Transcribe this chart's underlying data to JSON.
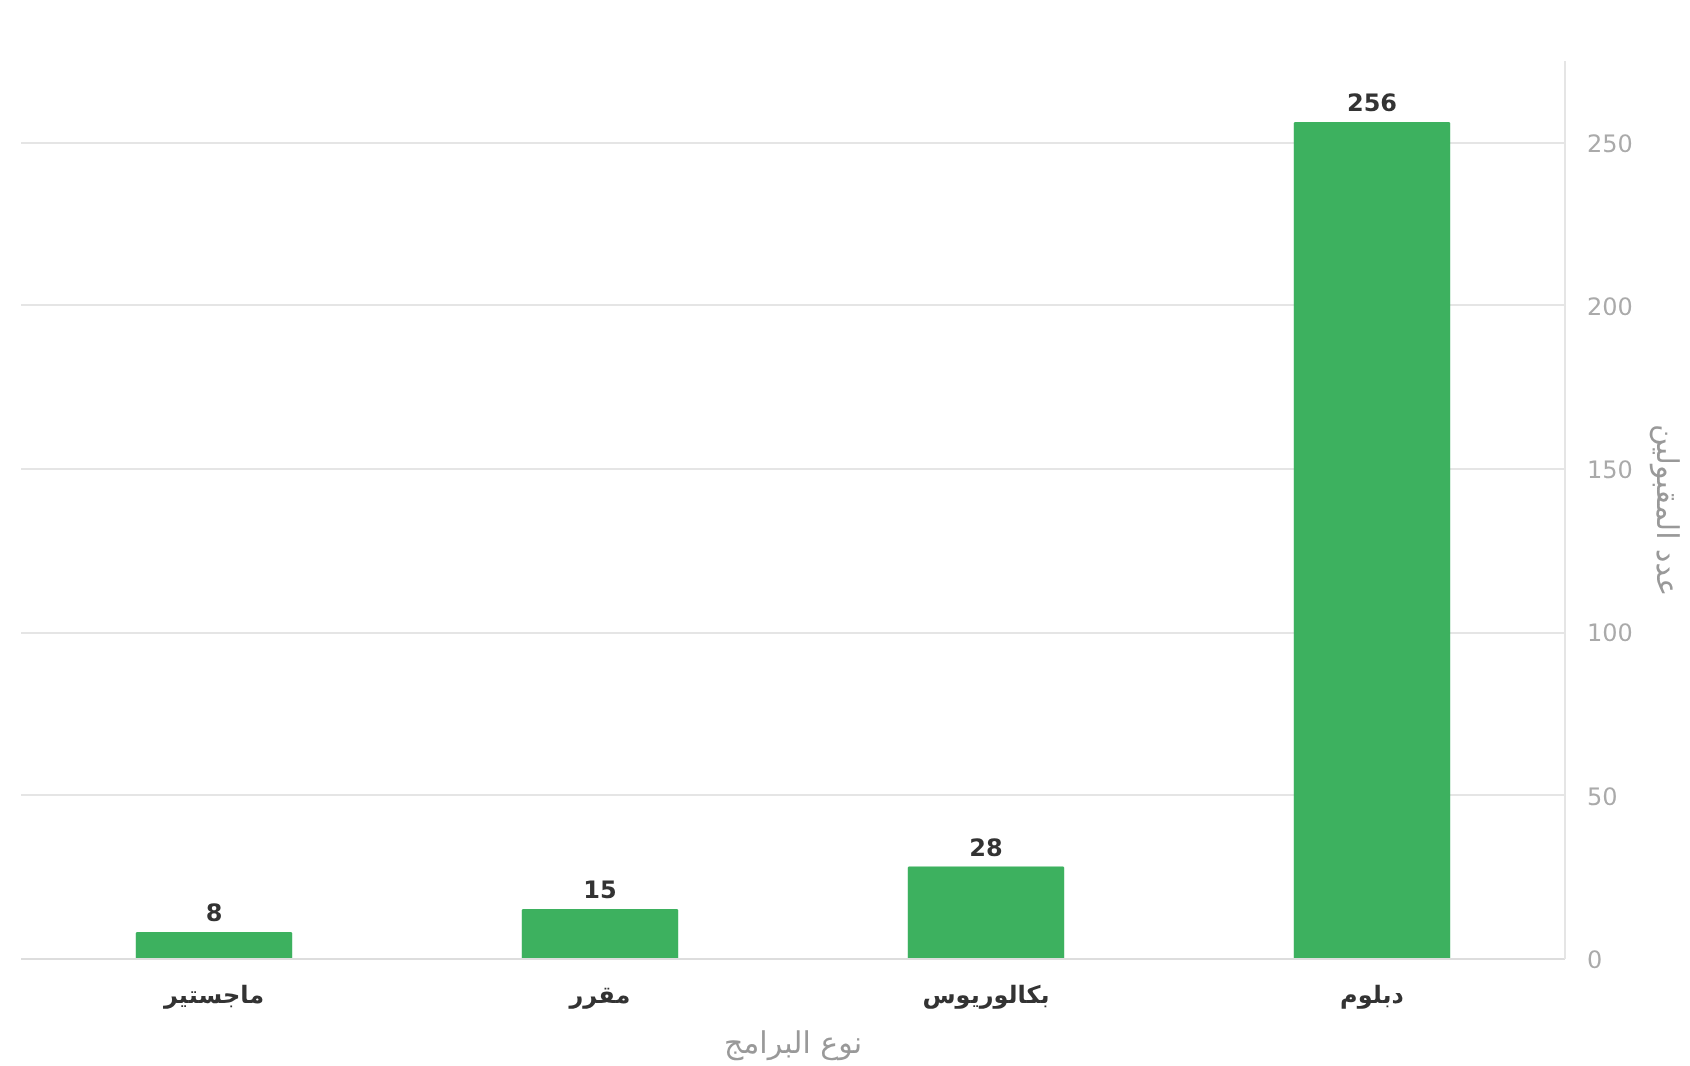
{
  "chart_data": {
    "type": "bar",
    "categories": [
      "ماجستير",
      "مقرر",
      "بكالوريوس",
      "دبلوم"
    ],
    "values": [
      8,
      15,
      28,
      256
    ],
    "color": "#3db15f",
    "xlabel": "نوع البرامج",
    "ylabel": "عدد المقبولين",
    "ylim": [
      0,
      275
    ],
    "yticks": [
      0,
      50,
      100,
      150,
      200,
      250
    ],
    "grid": "y",
    "data_labels": true
  }
}
